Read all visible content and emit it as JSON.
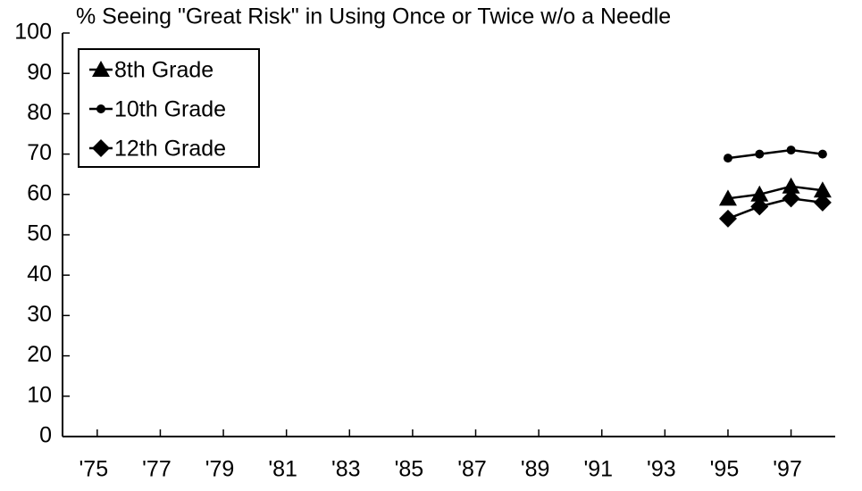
{
  "chart_data": {
    "type": "line",
    "title": "% Seeing \"Great Risk\" in Using Once or Twice w/o a Needle",
    "x": [
      1995,
      1996,
      1997,
      1998
    ],
    "series": [
      {
        "name": "8th Grade",
        "color": "#000000",
        "marker": "triangle",
        "values": [
          59,
          60,
          62,
          61
        ]
      },
      {
        "name": "10th Grade",
        "color": "#000000",
        "marker": "circle",
        "values": [
          69,
          70,
          71,
          70
        ]
      },
      {
        "name": "12th Grade",
        "color": "#000000",
        "marker": "diamond",
        "values": [
          54,
          57,
          59,
          58
        ]
      }
    ],
    "xlim": [
      1973.9,
      1998.4
    ],
    "xticks": [
      {
        "value": 1975,
        "label": "'75"
      },
      {
        "value": 1977,
        "label": "'77"
      },
      {
        "value": 1979,
        "label": "'79"
      },
      {
        "value": 1981,
        "label": "'81"
      },
      {
        "value": 1983,
        "label": "'83"
      },
      {
        "value": 1985,
        "label": "'85"
      },
      {
        "value": 1987,
        "label": "'87"
      },
      {
        "value": 1989,
        "label": "'89"
      },
      {
        "value": 1991,
        "label": "'91"
      },
      {
        "value": 1993,
        "label": "'93"
      },
      {
        "value": 1995,
        "label": "'95"
      },
      {
        "value": 1997,
        "label": "'97"
      }
    ],
    "ylim": [
      0,
      100
    ],
    "yticks": [
      0,
      10,
      20,
      30,
      40,
      50,
      60,
      70,
      80,
      90,
      100
    ],
    "grid": false,
    "legend": "upper left"
  }
}
